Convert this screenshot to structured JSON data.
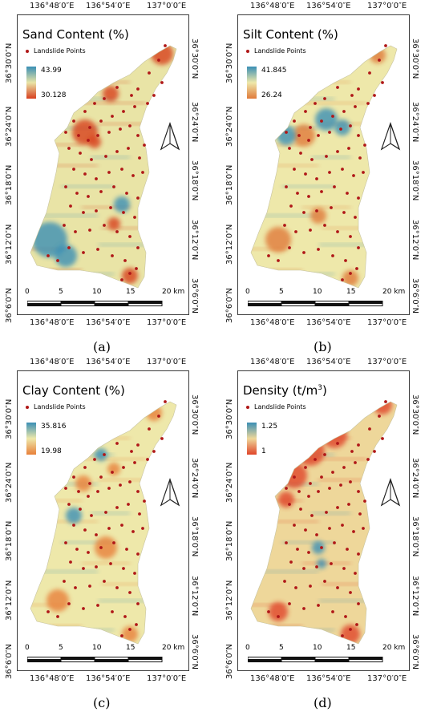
{
  "panels": [
    {
      "id": "a",
      "title": "Sand Content (%)",
      "title_sup": "",
      "title_suffix": "",
      "legend_points": "Landslide Points",
      "ramp_max": "43.99",
      "ramp_min": "30.128",
      "colors": {
        "high": "#3a8fb5",
        "mid": "#e9e4a6",
        "low": "#d8401f"
      },
      "sublabel": "(a)",
      "lon_top": [
        "136°48′0″E",
        "136°54′0″E",
        "137°0′0″E"
      ],
      "lon_bottom": [
        "136°48′0″E",
        "136°54′0″E",
        "137°0′0″E"
      ],
      "lat_left": [
        "36°30′0″N",
        "36°24′0″N",
        "36°18′0″N",
        "36°12′0″N",
        "36°6′0″N"
      ],
      "lat_right": [
        "36°30′0″N",
        "36°24′0″N",
        "36°18′0″N",
        "36°12′0″N",
        "36°6′0″N"
      ],
      "scale_labels": [
        "0",
        "5",
        "10",
        "15",
        "20 km"
      ]
    },
    {
      "id": "b",
      "title": "Silt Content (%)",
      "title_sup": "",
      "title_suffix": "",
      "legend_points": "Landslide Points",
      "ramp_max": "41.845",
      "ramp_min": "26.24",
      "colors": {
        "high": "#3a8fb5",
        "mid": "#eee8aa",
        "low": "#e07a3a"
      },
      "sublabel": "(b)",
      "lon_top": [
        "136°48′0″E",
        "136°54′0″E",
        "137°0′0″E"
      ],
      "lon_bottom": [
        "136°48′0″E",
        "136°54′0″E",
        "137°0′0″E"
      ],
      "lat_left": [
        "36°30′0″N",
        "36°24′0″N",
        "36°18′0″N",
        "36°12′0″N",
        "36°6′0″N"
      ],
      "lat_right": [
        "36°30′0″N",
        "36°24′0″N",
        "36°18′0″N",
        "36°12′0″N",
        "36°6′0″N"
      ],
      "scale_labels": [
        "0",
        "5",
        "10",
        "15",
        "20 km"
      ]
    },
    {
      "id": "c",
      "title": "Clay Content (%)",
      "title_sup": "",
      "title_suffix": "",
      "legend_points": "Landslide Points",
      "ramp_max": "35.816",
      "ramp_min": "19.98",
      "colors": {
        "high": "#3a8fb5",
        "mid": "#eee8aa",
        "low": "#e8803a"
      },
      "sublabel": "(c)",
      "lon_top": [
        "136°48′0″E",
        "136°54′0″E",
        "137°0′0″E"
      ],
      "lon_bottom": [
        "136°48′0″E",
        "136°54′0″E",
        "137°0′0″E"
      ],
      "lat_left": [
        "36°30′0″N",
        "36°24′0″N",
        "36°18′0″N",
        "36°12′0″N",
        "36°6′0″N"
      ],
      "lat_right": [
        "36°30′0″N",
        "36°24′0″N",
        "36°18′0″N",
        "36°12′0″N",
        "36°6′0″N"
      ],
      "scale_labels": [
        "0",
        "5",
        "10",
        "15",
        "20 km"
      ]
    },
    {
      "id": "d",
      "title": "Density (t/m",
      "title_sup": "3",
      "title_suffix": ")",
      "legend_points": "Landslide Points",
      "ramp_max": "1.25",
      "ramp_min": "1",
      "colors": {
        "high": "#3a8fb5",
        "mid": "#eed79a",
        "low": "#e0452a"
      },
      "sublabel": "(d)",
      "lon_top": [
        "136°48′0″E",
        "136°54′0″E",
        "137°0′0″E"
      ],
      "lon_bottom": [
        "136°48′0″E",
        "136°54′0″E",
        "137°0′0″E"
      ],
      "lat_left": [
        "36°30′0″N",
        "36°24′0″N",
        "36°18′0″N",
        "36°12′0″N",
        "36°6′0″N"
      ],
      "lat_right": [
        "36°30′0″N",
        "36°24′0″N",
        "36°18′0″N",
        "36°12′0″N",
        "36°6′0″N"
      ],
      "scale_labels": [
        "0",
        "5",
        "10",
        "15",
        "20 km"
      ]
    }
  ],
  "icons": {
    "north_arrow": "north-arrow-icon",
    "landslide_marker": "landslide-point-icon"
  }
}
